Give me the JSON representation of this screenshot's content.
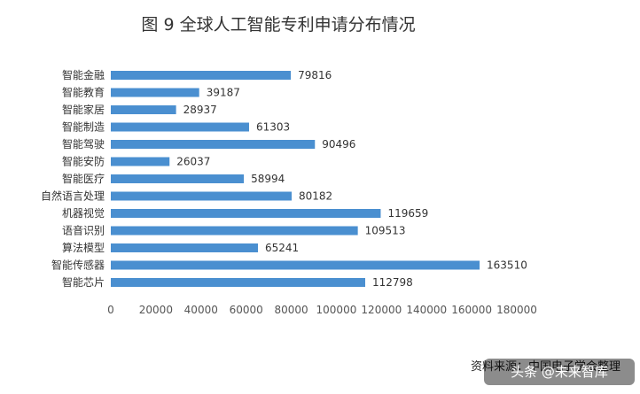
{
  "chart_data": {
    "type": "bar",
    "orientation": "horizontal",
    "title": "图 9  全球人工智能专利申请分布情况",
    "categories": [
      "智能金融",
      "智能教育",
      "智能家居",
      "智能制造",
      "智能驾驶",
      "智能安防",
      "智能医疗",
      "自然语言处理",
      "机器视觉",
      "语音识别",
      "算法模型",
      "智能传感器",
      "智能芯片"
    ],
    "values": [
      79816,
      39187,
      28937,
      61303,
      90496,
      26037,
      58994,
      80182,
      119659,
      109513,
      65241,
      163510,
      112798
    ],
    "xlim": [
      0,
      180000
    ],
    "xticks": [
      0,
      20000,
      40000,
      60000,
      80000,
      100000,
      120000,
      140000,
      160000,
      180000
    ],
    "bar_color": "#4a8fd0",
    "grid": false,
    "legend": "none"
  },
  "source": "资料来源：中国电子学会整理",
  "watermark": "头条 @未来智库"
}
